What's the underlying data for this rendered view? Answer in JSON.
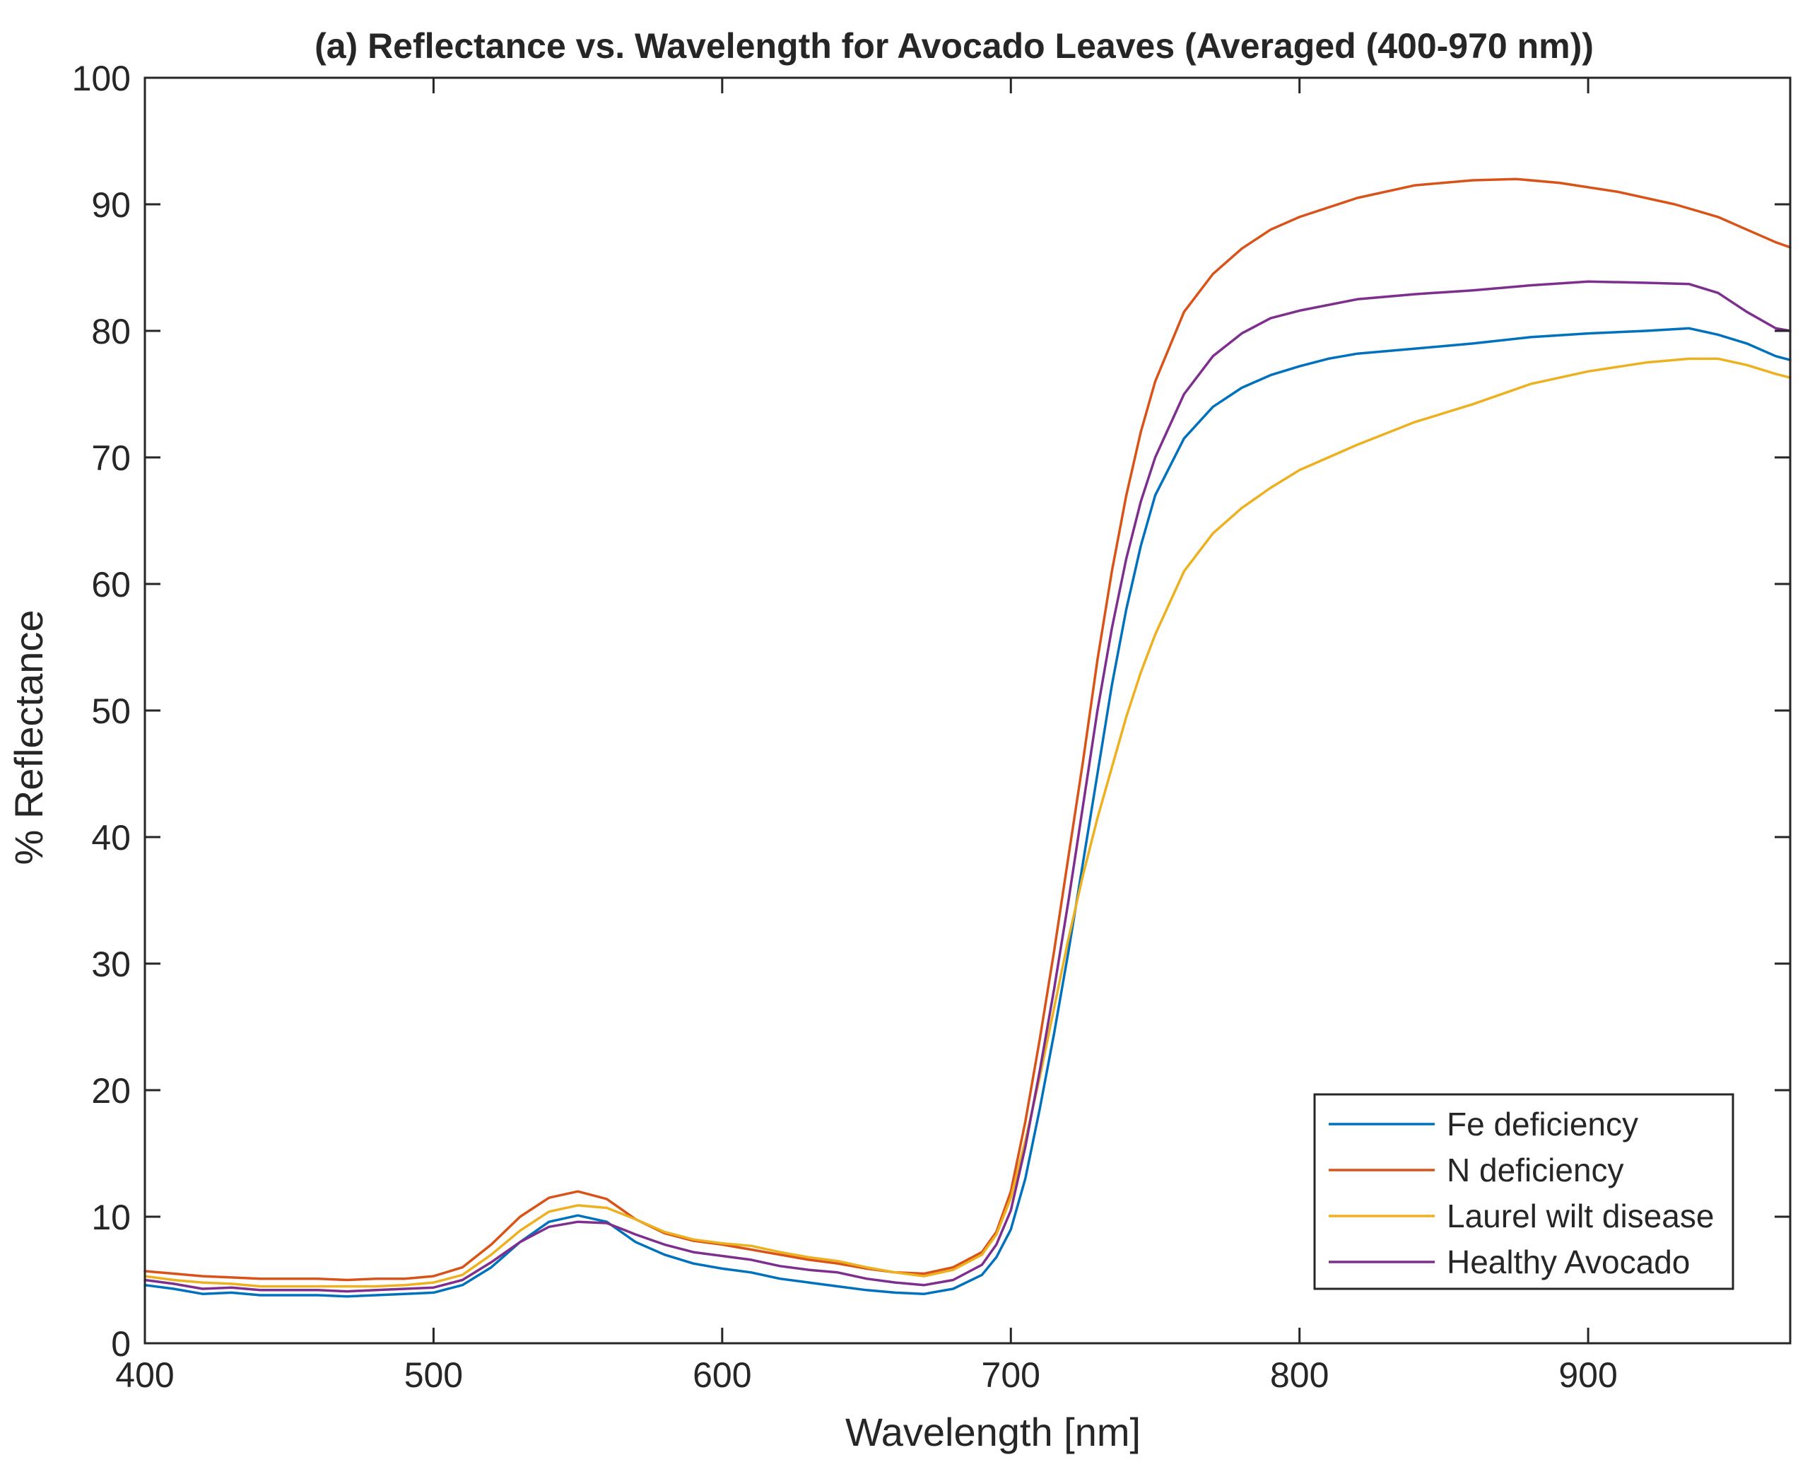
{
  "chart_data": {
    "type": "line",
    "title": "(a) Reflectance vs. Wavelength for Avocado Leaves (Averaged (400-970 nm))",
    "xlabel": "Wavelength [nm]",
    "ylabel": "% Reflectance",
    "xlim": [
      400,
      970
    ],
    "ylim": [
      0,
      100
    ],
    "xticks": [
      400,
      500,
      600,
      700,
      800,
      900
    ],
    "xtick_labels": [
      "400",
      "500",
      "600",
      "700",
      "800",
      "900"
    ],
    "yticks": [
      0,
      10,
      20,
      30,
      40,
      50,
      60,
      70,
      80,
      90,
      100
    ],
    "ytick_labels": [
      "0",
      "10",
      "20",
      "30",
      "40",
      "50",
      "60",
      "70",
      "80",
      "90",
      "100"
    ],
    "grid": false,
    "legend_position": "bottom-right",
    "series": [
      {
        "name": "Fe deficiency",
        "color": "#0072BD",
        "points": [
          [
            400,
            4.6
          ],
          [
            410,
            4.3
          ],
          [
            420,
            3.9
          ],
          [
            430,
            4.0
          ],
          [
            440,
            3.8
          ],
          [
            450,
            3.8
          ],
          [
            460,
            3.8
          ],
          [
            470,
            3.7
          ],
          [
            480,
            3.8
          ],
          [
            490,
            3.9
          ],
          [
            500,
            4.0
          ],
          [
            510,
            4.6
          ],
          [
            520,
            6.0
          ],
          [
            530,
            8.0
          ],
          [
            540,
            9.6
          ],
          [
            550,
            10.1
          ],
          [
            560,
            9.6
          ],
          [
            570,
            8.0
          ],
          [
            580,
            7.0
          ],
          [
            590,
            6.3
          ],
          [
            600,
            5.9
          ],
          [
            610,
            5.6
          ],
          [
            620,
            5.1
          ],
          [
            630,
            4.8
          ],
          [
            640,
            4.5
          ],
          [
            650,
            4.2
          ],
          [
            660,
            4.0
          ],
          [
            670,
            3.9
          ],
          [
            680,
            4.3
          ],
          [
            690,
            5.4
          ],
          [
            695,
            6.8
          ],
          [
            700,
            9.0
          ],
          [
            705,
            13.0
          ],
          [
            710,
            18.5
          ],
          [
            715,
            24.5
          ],
          [
            720,
            31.0
          ],
          [
            725,
            38.0
          ],
          [
            730,
            45.0
          ],
          [
            735,
            52.0
          ],
          [
            740,
            58.0
          ],
          [
            745,
            63.0
          ],
          [
            750,
            67.0
          ],
          [
            760,
            71.5
          ],
          [
            770,
            74.0
          ],
          [
            780,
            75.5
          ],
          [
            790,
            76.5
          ],
          [
            800,
            77.2
          ],
          [
            810,
            77.8
          ],
          [
            820,
            78.2
          ],
          [
            840,
            78.6
          ],
          [
            860,
            79.0
          ],
          [
            880,
            79.5
          ],
          [
            900,
            79.8
          ],
          [
            920,
            80.0
          ],
          [
            935,
            80.2
          ],
          [
            945,
            79.7
          ],
          [
            955,
            79.0
          ],
          [
            965,
            78.0
          ],
          [
            970,
            77.7
          ]
        ]
      },
      {
        "name": "N deficiency",
        "color": "#D95319",
        "points": [
          [
            400,
            5.7
          ],
          [
            410,
            5.5
          ],
          [
            420,
            5.3
          ],
          [
            430,
            5.2
          ],
          [
            440,
            5.1
          ],
          [
            450,
            5.1
          ],
          [
            460,
            5.1
          ],
          [
            470,
            5.0
          ],
          [
            480,
            5.1
          ],
          [
            490,
            5.1
          ],
          [
            500,
            5.3
          ],
          [
            510,
            6.0
          ],
          [
            520,
            7.8
          ],
          [
            530,
            10.0
          ],
          [
            540,
            11.5
          ],
          [
            550,
            12.0
          ],
          [
            560,
            11.4
          ],
          [
            570,
            9.8
          ],
          [
            580,
            8.7
          ],
          [
            590,
            8.1
          ],
          [
            600,
            7.8
          ],
          [
            610,
            7.4
          ],
          [
            620,
            7.0
          ],
          [
            630,
            6.6
          ],
          [
            640,
            6.3
          ],
          [
            650,
            5.9
          ],
          [
            660,
            5.6
          ],
          [
            670,
            5.5
          ],
          [
            680,
            6.0
          ],
          [
            690,
            7.2
          ],
          [
            695,
            8.8
          ],
          [
            700,
            12.0
          ],
          [
            705,
            17.5
          ],
          [
            710,
            24.0
          ],
          [
            715,
            31.0
          ],
          [
            720,
            38.5
          ],
          [
            725,
            46.0
          ],
          [
            730,
            54.0
          ],
          [
            735,
            61.0
          ],
          [
            740,
            67.0
          ],
          [
            745,
            72.0
          ],
          [
            750,
            76.0
          ],
          [
            760,
            81.5
          ],
          [
            770,
            84.5
          ],
          [
            780,
            86.5
          ],
          [
            790,
            88.0
          ],
          [
            800,
            89.0
          ],
          [
            820,
            90.5
          ],
          [
            840,
            91.5
          ],
          [
            860,
            91.9
          ],
          [
            875,
            92.0
          ],
          [
            890,
            91.7
          ],
          [
            910,
            91.0
          ],
          [
            930,
            90.0
          ],
          [
            945,
            89.0
          ],
          [
            955,
            88.0
          ],
          [
            965,
            87.0
          ],
          [
            970,
            86.6
          ]
        ]
      },
      {
        "name": "Laurel wilt disease",
        "color": "#EDB120",
        "points": [
          [
            400,
            5.3
          ],
          [
            410,
            5.0
          ],
          [
            420,
            4.8
          ],
          [
            430,
            4.7
          ],
          [
            440,
            4.5
          ],
          [
            450,
            4.5
          ],
          [
            460,
            4.5
          ],
          [
            470,
            4.5
          ],
          [
            480,
            4.5
          ],
          [
            490,
            4.6
          ],
          [
            500,
            4.8
          ],
          [
            510,
            5.4
          ],
          [
            520,
            7.0
          ],
          [
            530,
            8.9
          ],
          [
            540,
            10.4
          ],
          [
            550,
            10.9
          ],
          [
            560,
            10.7
          ],
          [
            570,
            9.8
          ],
          [
            580,
            8.8
          ],
          [
            590,
            8.2
          ],
          [
            600,
            7.9
          ],
          [
            610,
            7.7
          ],
          [
            620,
            7.2
          ],
          [
            630,
            6.8
          ],
          [
            640,
            6.5
          ],
          [
            650,
            6.0
          ],
          [
            660,
            5.6
          ],
          [
            670,
            5.3
          ],
          [
            680,
            5.8
          ],
          [
            690,
            7.0
          ],
          [
            695,
            8.6
          ],
          [
            700,
            11.5
          ],
          [
            705,
            16.0
          ],
          [
            710,
            21.0
          ],
          [
            715,
            26.5
          ],
          [
            720,
            32.0
          ],
          [
            725,
            37.0
          ],
          [
            730,
            41.5
          ],
          [
            735,
            45.5
          ],
          [
            740,
            49.5
          ],
          [
            745,
            53.0
          ],
          [
            750,
            56.0
          ],
          [
            760,
            61.0
          ],
          [
            770,
            64.0
          ],
          [
            780,
            66.0
          ],
          [
            790,
            67.6
          ],
          [
            800,
            69.0
          ],
          [
            820,
            71.0
          ],
          [
            840,
            72.8
          ],
          [
            860,
            74.2
          ],
          [
            880,
            75.8
          ],
          [
            900,
            76.8
          ],
          [
            920,
            77.5
          ],
          [
            935,
            77.8
          ],
          [
            945,
            77.8
          ],
          [
            955,
            77.3
          ],
          [
            965,
            76.6
          ],
          [
            970,
            76.3
          ]
        ]
      },
      {
        "name": "Healthy Avocado",
        "color": "#7E2F8E",
        "points": [
          [
            400,
            5.0
          ],
          [
            410,
            4.7
          ],
          [
            420,
            4.3
          ],
          [
            430,
            4.4
          ],
          [
            440,
            4.2
          ],
          [
            450,
            4.2
          ],
          [
            460,
            4.2
          ],
          [
            470,
            4.1
          ],
          [
            480,
            4.2
          ],
          [
            490,
            4.3
          ],
          [
            500,
            4.4
          ],
          [
            510,
            5.0
          ],
          [
            520,
            6.4
          ],
          [
            530,
            8.0
          ],
          [
            540,
            9.2
          ],
          [
            550,
            9.6
          ],
          [
            560,
            9.5
          ],
          [
            570,
            8.6
          ],
          [
            580,
            7.8
          ],
          [
            590,
            7.2
          ],
          [
            600,
            6.9
          ],
          [
            610,
            6.6
          ],
          [
            620,
            6.1
          ],
          [
            630,
            5.8
          ],
          [
            640,
            5.6
          ],
          [
            650,
            5.1
          ],
          [
            660,
            4.8
          ],
          [
            670,
            4.6
          ],
          [
            680,
            5.0
          ],
          [
            690,
            6.2
          ],
          [
            695,
            7.8
          ],
          [
            700,
            10.5
          ],
          [
            705,
            15.5
          ],
          [
            710,
            21.5
          ],
          [
            715,
            28.0
          ],
          [
            720,
            35.0
          ],
          [
            725,
            42.5
          ],
          [
            730,
            50.0
          ],
          [
            735,
            56.5
          ],
          [
            740,
            62.0
          ],
          [
            745,
            66.5
          ],
          [
            750,
            70.0
          ],
          [
            760,
            75.0
          ],
          [
            770,
            78.0
          ],
          [
            780,
            79.8
          ],
          [
            790,
            81.0
          ],
          [
            800,
            81.6
          ],
          [
            820,
            82.5
          ],
          [
            840,
            82.9
          ],
          [
            860,
            83.2
          ],
          [
            880,
            83.6
          ],
          [
            900,
            83.9
          ],
          [
            920,
            83.8
          ],
          [
            935,
            83.7
          ],
          [
            945,
            83.0
          ],
          [
            955,
            81.5
          ],
          [
            965,
            80.2
          ],
          [
            970,
            80.0
          ]
        ]
      }
    ]
  }
}
